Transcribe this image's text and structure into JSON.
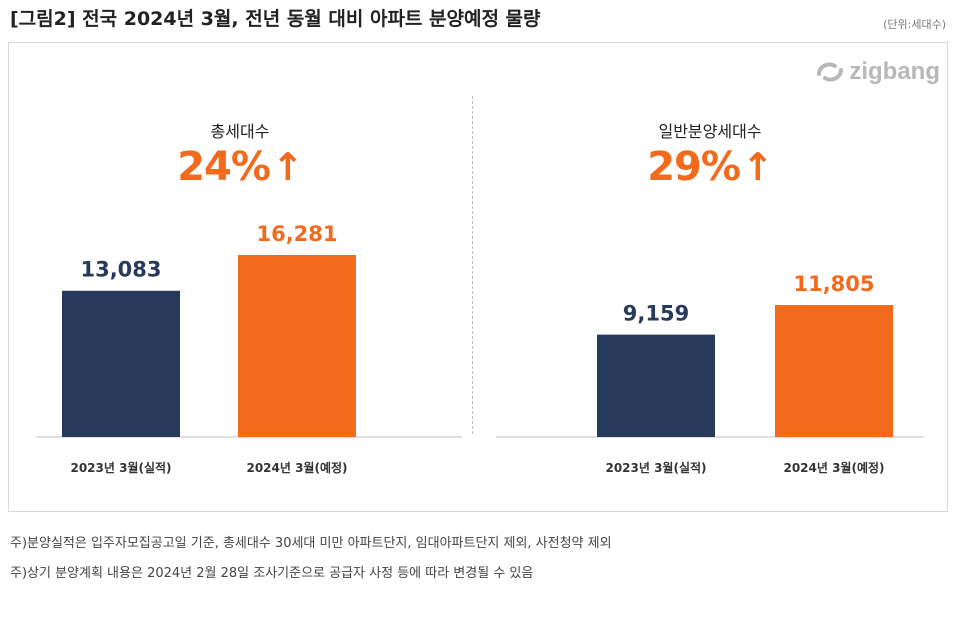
{
  "figure": {
    "title": "[그림2] 전국 2024년 3월, 전년 동월 대비 아파트 분양예정 물량",
    "unit": "(단위:세대수)",
    "logo_text": "zigbang"
  },
  "colors": {
    "actual": "#283a5c",
    "planned": "#f26b1d",
    "accent_text": "#f26b1d"
  },
  "chart_data": [
    {
      "type": "bar",
      "title": "총세대수",
      "change_label": "24%",
      "change_direction": "up",
      "categories": [
        "2023년 3월(실적)",
        "2024년 3월(예정)"
      ],
      "values": [
        13083,
        16281
      ],
      "value_labels": [
        "13,083",
        "16,281"
      ]
    },
    {
      "type": "bar",
      "title": "일반분양세대수",
      "change_label": "29%",
      "change_direction": "up",
      "categories": [
        "2023년 3월(실적)",
        "2024년 3월(예정)"
      ],
      "values": [
        9159,
        11805
      ],
      "value_labels": [
        "9,159",
        "11,805"
      ]
    }
  ],
  "notes": [
    "주)분양실적은 입주자모집공고일 기준, 총세대수 30세대 미만 아파트단지, 임대아파트단지 제외, 사전청약 제외",
    "주)상기 분양계획 내용은 2024년 2월 28일 조사기준으로 공급자 사정 등에 따라 변경될 수 있음"
  ]
}
